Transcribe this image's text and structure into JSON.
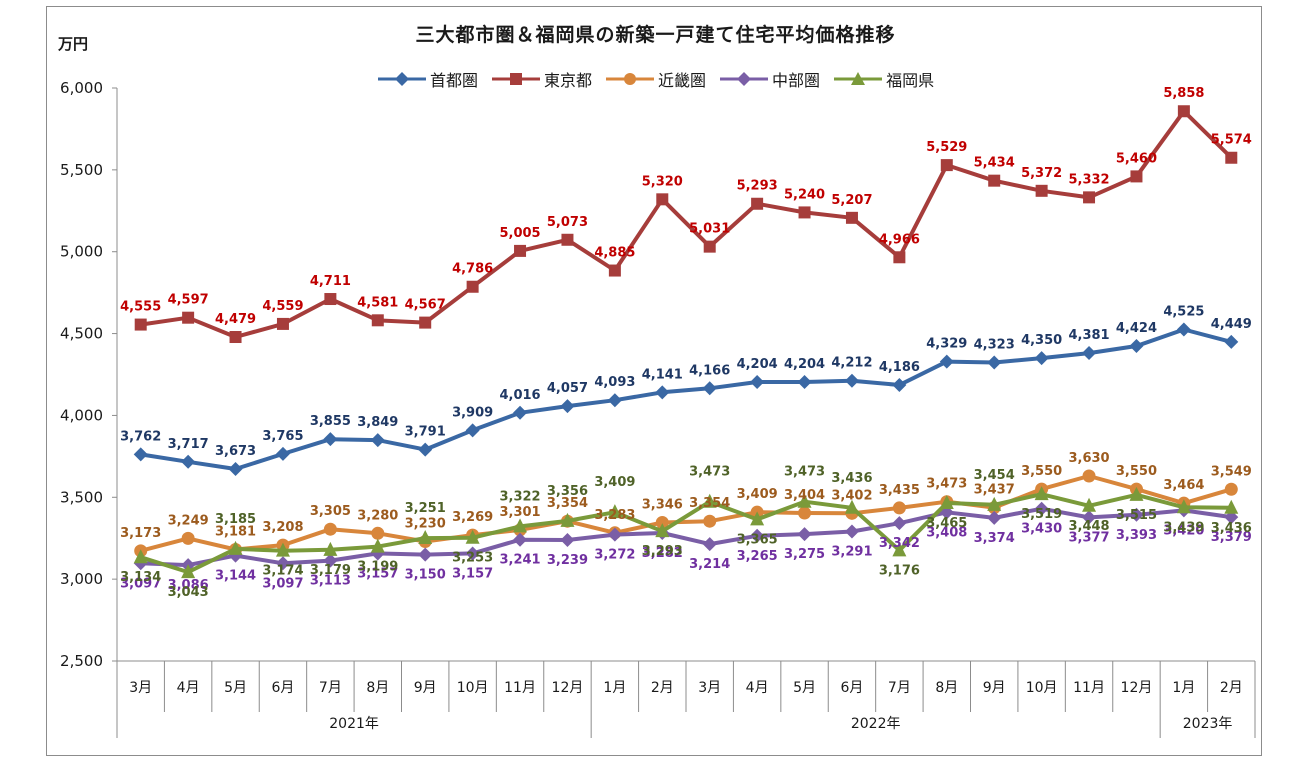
{
  "chart_data": {
    "type": "line",
    "title": "三大都市圏＆福岡県の新築一戸建て住宅平均価格推移",
    "ylabel": "万円",
    "ylim": [
      2500,
      6000
    ],
    "yticks": [
      "2,500",
      "3,000",
      "3,500",
      "4,000",
      "4,500",
      "5,000",
      "5,500",
      "6,000"
    ],
    "ytick_values": [
      2500,
      3000,
      3500,
      4000,
      4500,
      5000,
      5500,
      6000
    ],
    "categories": [
      "3月",
      "4月",
      "5月",
      "6月",
      "7月",
      "8月",
      "9月",
      "10月",
      "11月",
      "12月",
      "1月",
      "2月",
      "3月",
      "4月",
      "5月",
      "6月",
      "7月",
      "8月",
      "9月",
      "10月",
      "11月",
      "12月",
      "1月",
      "2月"
    ],
    "year_groups": [
      {
        "label": "2021年",
        "start": 0,
        "end": 9
      },
      {
        "label": "2022年",
        "start": 10,
        "end": 21
      },
      {
        "label": "2023年",
        "start": 22,
        "end": 23
      }
    ],
    "grid": false,
    "legend_position": "top",
    "series": [
      {
        "name": "首都圏",
        "color": "#3a68a4",
        "label_color": "#1f3864",
        "marker": "diamond",
        "values": [
          3762,
          3717,
          3673,
          3765,
          3855,
          3849,
          3791,
          3909,
          4016,
          4057,
          4093,
          4141,
          4166,
          4204,
          4204,
          4212,
          4186,
          4329,
          4323,
          4350,
          4381,
          4424,
          4525,
          4449
        ]
      },
      {
        "name": "東京都",
        "color": "#a63d3b",
        "label_color": "#c00000",
        "marker": "square",
        "values": [
          4555,
          4597,
          4479,
          4559,
          4711,
          4581,
          4567,
          4786,
          5005,
          5073,
          4885,
          5320,
          5031,
          5293,
          5240,
          5207,
          4966,
          5529,
          5434,
          5372,
          5332,
          5460,
          5858,
          5574
        ]
      },
      {
        "name": "近畿圏",
        "color": "#d8863b",
        "label_color": "#9c5b1e",
        "marker": "circle",
        "values": [
          3173,
          3249,
          3181,
          3208,
          3305,
          3280,
          3230,
          3269,
          3301,
          3354,
          3283,
          3346,
          3354,
          3409,
          3404,
          3402,
          3435,
          3473,
          3437,
          3550,
          3630,
          3550,
          3464,
          3549
        ]
      },
      {
        "name": "中部圏",
        "color": "#7a5ea6",
        "label_color": "#7030a0",
        "marker": "diamond",
        "values": [
          3097,
          3086,
          3144,
          3097,
          3113,
          3157,
          3150,
          3157,
          3241,
          3239,
          3272,
          3282,
          3214,
          3265,
          3275,
          3291,
          3342,
          3408,
          3374,
          3430,
          3377,
          3393,
          3420,
          3379
        ]
      },
      {
        "name": "福岡県",
        "color": "#7a9a3a",
        "label_color": "#4f6228",
        "marker": "triangle",
        "values": [
          3134,
          3043,
          3185,
          3174,
          3179,
          3199,
          3251,
          3253,
          3322,
          3356,
          3409,
          3293,
          3473,
          3365,
          3473,
          3436,
          3176,
          3465,
          3454,
          3519,
          3448,
          3515,
          3439,
          3436
        ]
      }
    ],
    "data_labels": [
      [
        "3,762",
        "3,717",
        "3,673",
        "3,765",
        "3,855",
        "3,849",
        "3,791",
        "3,909",
        "4,016",
        "4,057",
        "4,093",
        "4,141",
        "4,166",
        "4,204",
        "4,204",
        "4,212",
        "4,186",
        "4,329",
        "4,323",
        "4,350",
        "4,381",
        "4,424",
        "4,525",
        "4,449"
      ],
      [
        "4,555",
        "4,597",
        "4,479",
        "4,559",
        "4,711",
        "4,581",
        "4,567",
        "4,786",
        "5,005",
        "5,073",
        "4,885",
        "5,320",
        "5,031",
        "5,293",
        "5,240",
        "5,207",
        "4,966",
        "5,529",
        "5,434",
        "5,372",
        "5,332",
        "5,460",
        "5,858",
        "5,574"
      ],
      [
        "3,173",
        "3,249",
        "3,181",
        "3,208",
        "3,305",
        "3,280",
        "3,230",
        "3,269",
        "3,301",
        "3,354",
        "3,283",
        "3,346",
        "3,354",
        "3,409",
        "3,404",
        "3,402",
        "3,435",
        "3,473",
        "3,437",
        "3,550",
        "3,630",
        "3,550",
        "3,464",
        "3,549"
      ],
      [
        "3,097",
        "3,086",
        "3,144",
        "3,097",
        "3,113",
        "3,157",
        "3,150",
        "3,157",
        "3,241",
        "3,239",
        "3,272",
        "3,282",
        "3,214",
        "3,265",
        "3,275",
        "3,291",
        "3,342",
        "3,408",
        "3,374",
        "3,430",
        "3,377",
        "3,393",
        "3,420",
        "3,379"
      ],
      [
        "3,134",
        "3,043",
        "3,185",
        "3,174",
        "3,179",
        "3,199",
        "3,251",
        "3,253",
        "3,322",
        "3,356",
        "3,409",
        "3,293",
        "3,473",
        "3,365",
        "3,473",
        "3,436",
        "3,176",
        "3,465",
        "3,454",
        "3,519",
        "3,448",
        "3,515",
        "3,439",
        "3,436"
      ]
    ]
  }
}
